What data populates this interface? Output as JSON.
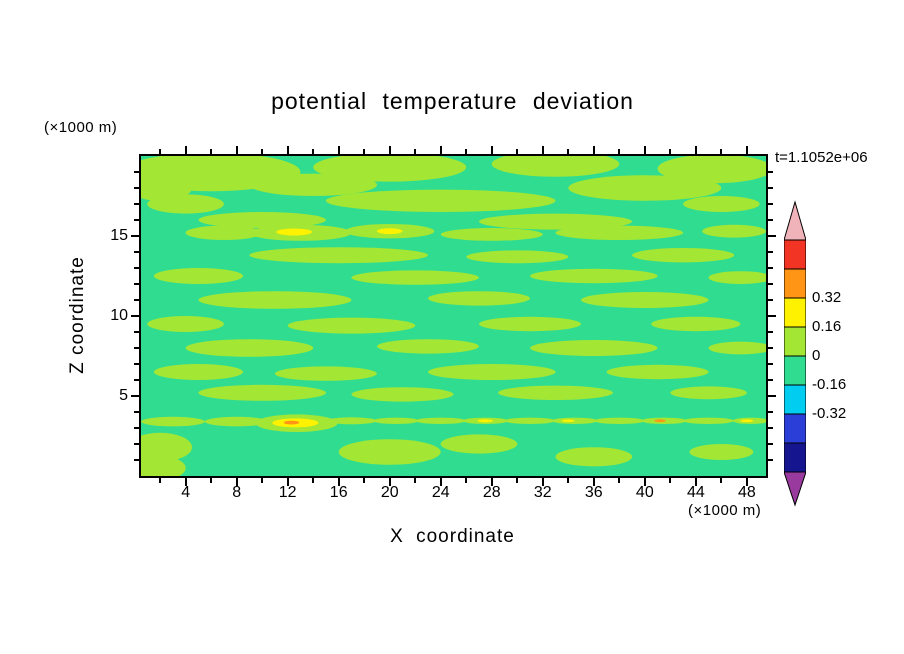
{
  "chart_data": {
    "type": "heatmap",
    "title": "potential temperature deviation",
    "xlabel": "X coordinate",
    "ylabel": "Z coordinate",
    "x_unit": "(×1000 m)",
    "z_unit": "(×1000 m)",
    "time": "t=1.1052e+06",
    "xlim": [
      0.5,
      49.5
    ],
    "ylim": [
      0,
      20
    ],
    "x_major_ticks": [
      4,
      8,
      12,
      16,
      20,
      24,
      28,
      32,
      36,
      40,
      44,
      48
    ],
    "x_minor_ticks": [
      2,
      6,
      10,
      14,
      18,
      22,
      26,
      30,
      34,
      38,
      42,
      46
    ],
    "z_major_ticks": [
      5,
      10,
      15
    ],
    "z_minor_ticks": [
      1,
      2,
      3,
      4,
      6,
      7,
      8,
      9,
      11,
      12,
      13,
      14,
      16,
      17,
      18,
      19
    ],
    "contour_interval": 0.16,
    "palette": {
      "bg": "#30dd90",
      "yg": "#a3e634",
      "y": "#fff200",
      "o": "#ff9415"
    },
    "colorbar": {
      "arrow_top_color": "#f0b3ba",
      "arrow_bottom_color": "#993a9e",
      "segments": [
        {
          "color": "#f13424"
        },
        {
          "color": "#ff9415"
        },
        {
          "color": "#fff200"
        },
        {
          "color": "#a3e634"
        },
        {
          "color": "#30dd90"
        },
        {
          "color": "#00cdf0"
        },
        {
          "color": "#2b3fd8"
        },
        {
          "color": "#15168f"
        }
      ],
      "labels": [
        "0.32",
        "0.16",
        "0",
        "-0.16",
        "-0.32"
      ]
    },
    "field": {
      "background_key": "bg",
      "blobs": [
        [
          6,
          19,
          7,
          1.2
        ],
        [
          20,
          19.3,
          6,
          0.9
        ],
        [
          33,
          19.5,
          5,
          0.8
        ],
        [
          45.5,
          19.2,
          4.5,
          0.9
        ],
        [
          2,
          18,
          2.5,
          0.8
        ],
        [
          14,
          18.2,
          5,
          0.7
        ],
        [
          40,
          18,
          6,
          0.8
        ],
        [
          4,
          17,
          3,
          0.6
        ],
        [
          24,
          17.2,
          9,
          0.7
        ],
        [
          46,
          17,
          3,
          0.5
        ],
        [
          10,
          16,
          5,
          0.5
        ],
        [
          33,
          15.9,
          6,
          0.5
        ],
        [
          7,
          15.2,
          3,
          0.45
        ],
        [
          13,
          15.2,
          4,
          0.5
        ],
        [
          20,
          15.3,
          3.5,
          0.45
        ],
        [
          28,
          15.1,
          4,
          0.4
        ],
        [
          38,
          15.2,
          5,
          0.45
        ],
        [
          47,
          15.3,
          2.5,
          0.4
        ],
        [
          12.5,
          15.25,
          1.4,
          0.22,
          "y"
        ],
        [
          20,
          15.3,
          1,
          0.18,
          "y"
        ],
        [
          16,
          13.8,
          7,
          0.5
        ],
        [
          30,
          13.7,
          4,
          0.4
        ],
        [
          43,
          13.8,
          4,
          0.45
        ],
        [
          5,
          12.5,
          3.5,
          0.5
        ],
        [
          22,
          12.4,
          5,
          0.45
        ],
        [
          36,
          12.5,
          5,
          0.45
        ],
        [
          47.5,
          12.4,
          2.5,
          0.4
        ],
        [
          11,
          11,
          6,
          0.55
        ],
        [
          27,
          11.1,
          4,
          0.45
        ],
        [
          40,
          11,
          5,
          0.5
        ],
        [
          4,
          9.5,
          3,
          0.5
        ],
        [
          17,
          9.4,
          5,
          0.5
        ],
        [
          31,
          9.5,
          4,
          0.45
        ],
        [
          44,
          9.5,
          3.5,
          0.45
        ],
        [
          9,
          8,
          5,
          0.55
        ],
        [
          23,
          8.1,
          4,
          0.45
        ],
        [
          36,
          8,
          5,
          0.5
        ],
        [
          47.5,
          8,
          2.5,
          0.4
        ],
        [
          5,
          6.5,
          3.5,
          0.5
        ],
        [
          15,
          6.4,
          4,
          0.45
        ],
        [
          28,
          6.5,
          5,
          0.5
        ],
        [
          41,
          6.5,
          4,
          0.45
        ],
        [
          10,
          5.2,
          5,
          0.5
        ],
        [
          21,
          5.1,
          4,
          0.45
        ],
        [
          33,
          5.2,
          4.5,
          0.45
        ],
        [
          45,
          5.2,
          3,
          0.4
        ],
        [
          3,
          3.4,
          2.5,
          0.3
        ],
        [
          8,
          3.4,
          2.5,
          0.3
        ],
        [
          12.7,
          3.3,
          3.2,
          0.55
        ],
        [
          17,
          3.45,
          2,
          0.22
        ],
        [
          20.5,
          3.45,
          1.8,
          0.2
        ],
        [
          24,
          3.45,
          2,
          0.2
        ],
        [
          27.5,
          3.45,
          1.8,
          0.2
        ],
        [
          31,
          3.45,
          2,
          0.2
        ],
        [
          34.5,
          3.45,
          1.8,
          0.2
        ],
        [
          38,
          3.45,
          2,
          0.2
        ],
        [
          41.5,
          3.45,
          1.8,
          0.2
        ],
        [
          45,
          3.45,
          2,
          0.2
        ],
        [
          48.3,
          3.45,
          1.4,
          0.2
        ],
        [
          12.6,
          3.32,
          1.8,
          0.28,
          "y"
        ],
        [
          12.3,
          3.34,
          0.6,
          0.12,
          "o"
        ],
        [
          27.5,
          3.45,
          0.6,
          0.1,
          "y"
        ],
        [
          34,
          3.45,
          0.5,
          0.09,
          "y"
        ],
        [
          41.2,
          3.45,
          0.45,
          0.09,
          "o"
        ],
        [
          48,
          3.45,
          0.5,
          0.09,
          "y"
        ],
        [
          2,
          1.8,
          2.5,
          0.9
        ],
        [
          20,
          1.5,
          4,
          0.8
        ],
        [
          27,
          2,
          3,
          0.6
        ],
        [
          36,
          1.2,
          3,
          0.6
        ],
        [
          46,
          1.5,
          2.5,
          0.5
        ],
        [
          1,
          0.5,
          3,
          0.9
        ]
      ]
    }
  }
}
